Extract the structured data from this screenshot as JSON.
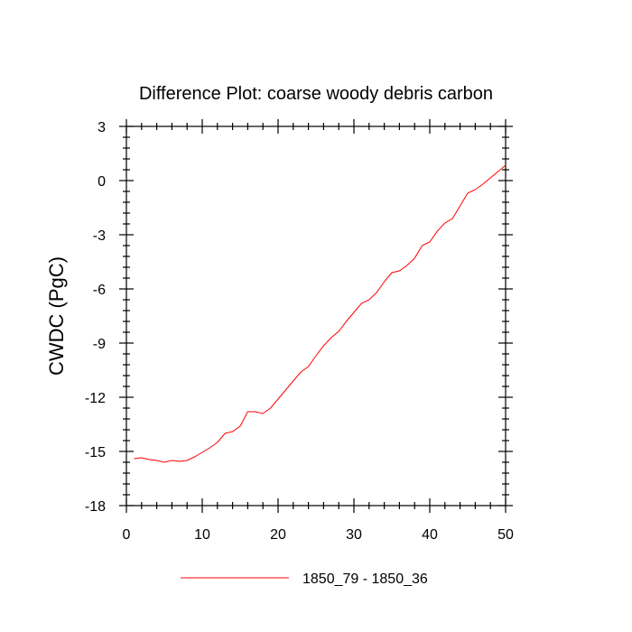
{
  "chart_data": {
    "type": "line",
    "title": "Difference Plot: coarse woody debris carbon",
    "xlabel": "",
    "ylabel": "CWDC  (PgC)",
    "xlim": [
      0,
      50
    ],
    "ylim": [
      -18,
      3
    ],
    "x_major_ticks": [
      0,
      10,
      20,
      30,
      40,
      50
    ],
    "x_minor_step": 2,
    "y_major_ticks": [
      3,
      0,
      -3,
      -6,
      -9,
      -12,
      -15,
      -18
    ],
    "y_minor_step": 0.6,
    "grid": false,
    "legend_position": "bottom-center",
    "series": [
      {
        "name": "1850_79 - 1850_36",
        "color": "#ff0000",
        "x": [
          1,
          2,
          3,
          4,
          5,
          6,
          7,
          8,
          9,
          10,
          11,
          12,
          13,
          14,
          15,
          16,
          17,
          18,
          19,
          20,
          21,
          22,
          23,
          24,
          25,
          26,
          27,
          28,
          29,
          30,
          31,
          32,
          33,
          34,
          35,
          36,
          37,
          38,
          39,
          40,
          41,
          42,
          43,
          44,
          45,
          46,
          47,
          48,
          49,
          50
        ],
        "y": [
          -15.4,
          -15.35,
          -15.45,
          -15.5,
          -15.6,
          -15.5,
          -15.55,
          -15.5,
          -15.3,
          -15.05,
          -14.8,
          -14.5,
          -14.0,
          -13.9,
          -13.6,
          -12.8,
          -12.8,
          -12.9,
          -12.6,
          -12.1,
          -11.6,
          -11.1,
          -10.6,
          -10.3,
          -9.7,
          -9.15,
          -8.7,
          -8.35,
          -7.8,
          -7.3,
          -6.8,
          -6.6,
          -6.2,
          -5.6,
          -5.1,
          -5.0,
          -4.7,
          -4.3,
          -3.6,
          -3.4,
          -2.8,
          -2.35,
          -2.1,
          -1.4,
          -0.7,
          -0.5,
          -0.2,
          0.15,
          0.5,
          0.85
        ]
      }
    ]
  }
}
